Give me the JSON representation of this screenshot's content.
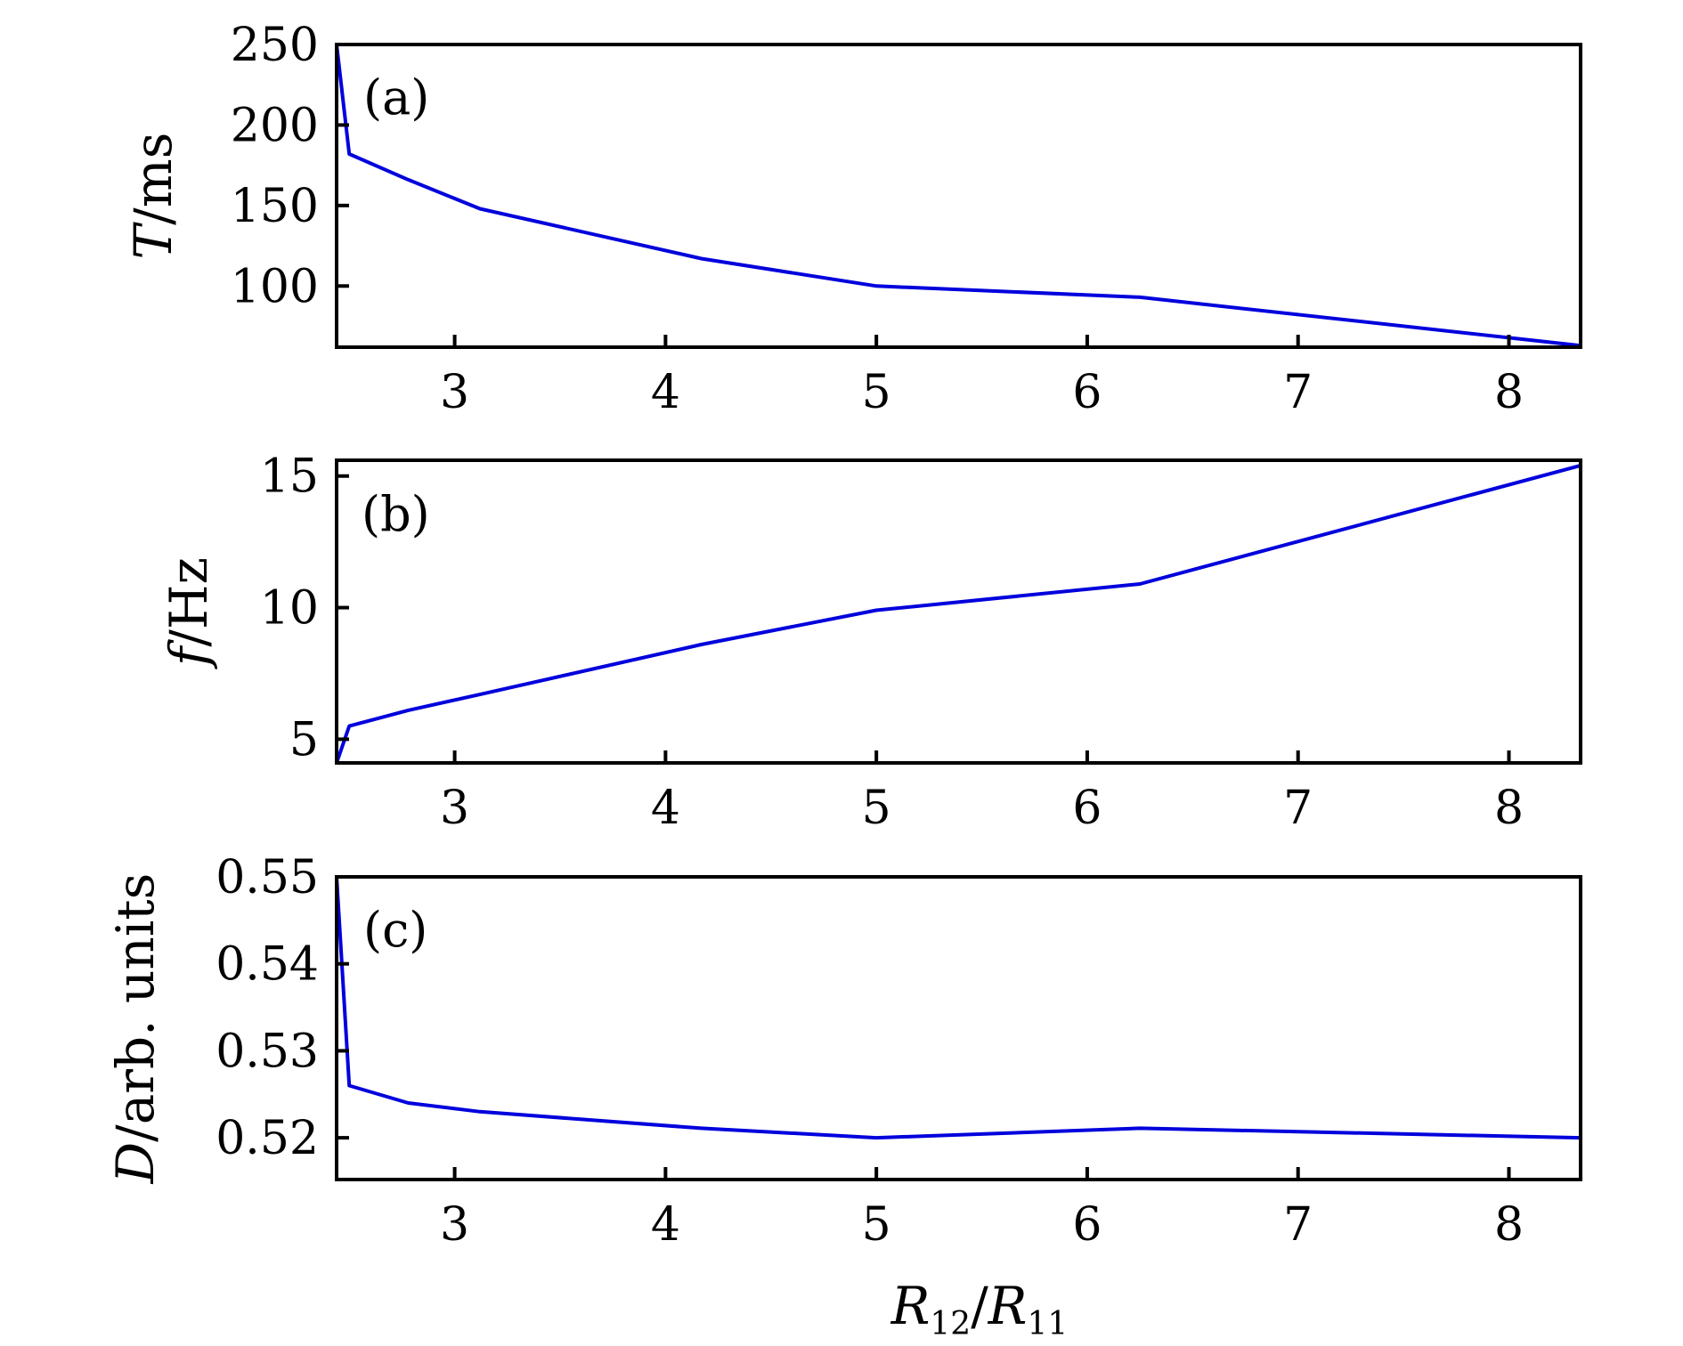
{
  "chart_data": [
    {
      "type": "line",
      "panel_label": "(a)",
      "ylabel": "T/ms",
      "ylabel_italic_part": "T",
      "ylabel_unit": "/ms",
      "xlim": [
        2.44,
        8.34
      ],
      "ylim": [
        62,
        250
      ],
      "xticks": [
        3,
        4,
        5,
        6,
        7,
        8
      ],
      "yticks": [
        100,
        150,
        200,
        250
      ],
      "xtick_labels": [
        "3",
        "4",
        "5",
        "6",
        "7",
        "8"
      ],
      "ytick_labels": [
        "100",
        "150",
        "200",
        "250"
      ],
      "series": [
        {
          "color": "#0000dd",
          "x": [
            2.44,
            2.5,
            2.78,
            3.12,
            4.17,
            5.0,
            6.25,
            8.34
          ],
          "y": [
            250,
            182,
            166,
            148,
            117,
            100,
            93,
            63
          ]
        }
      ]
    },
    {
      "type": "line",
      "panel_label": "(b)",
      "ylabel": "f/Hz",
      "ylabel_italic_part": "f",
      "ylabel_unit": "/Hz",
      "xlim": [
        2.44,
        8.34
      ],
      "ylim": [
        4.1,
        15.6
      ],
      "xticks": [
        3,
        4,
        5,
        6,
        7,
        8
      ],
      "yticks": [
        5,
        10,
        15
      ],
      "xtick_labels": [
        "3",
        "4",
        "5",
        "6",
        "7",
        "8"
      ],
      "ytick_labels": [
        "5",
        "10",
        "15"
      ],
      "series": [
        {
          "color": "#0000dd",
          "x": [
            2.44,
            2.5,
            2.78,
            3.12,
            4.17,
            5.0,
            6.25,
            8.34
          ],
          "y": [
            4.1,
            5.5,
            6.1,
            6.7,
            8.6,
            9.9,
            10.9,
            15.4
          ]
        }
      ]
    },
    {
      "type": "line",
      "panel_label": "(c)",
      "ylabel": "D/arb. units",
      "ylabel_italic_part": "D",
      "ylabel_unit": "/arb. units",
      "xlabel": "R12/R11",
      "xlim": [
        2.44,
        8.34
      ],
      "ylim": [
        0.5152,
        0.55
      ],
      "xticks": [
        3,
        4,
        5,
        6,
        7,
        8
      ],
      "yticks": [
        0.52,
        0.53,
        0.54,
        0.55
      ],
      "xtick_labels": [
        "3",
        "4",
        "5",
        "6",
        "7",
        "8"
      ],
      "ytick_labels": [
        "0.52",
        "0.53",
        "0.54",
        "0.55"
      ],
      "series": [
        {
          "color": "#0000dd",
          "x": [
            2.44,
            2.5,
            2.78,
            3.12,
            4.17,
            5.0,
            6.25,
            8.34
          ],
          "y": [
            0.55,
            0.526,
            0.524,
            0.523,
            0.5211,
            0.52,
            0.5211,
            0.52
          ]
        }
      ]
    }
  ]
}
